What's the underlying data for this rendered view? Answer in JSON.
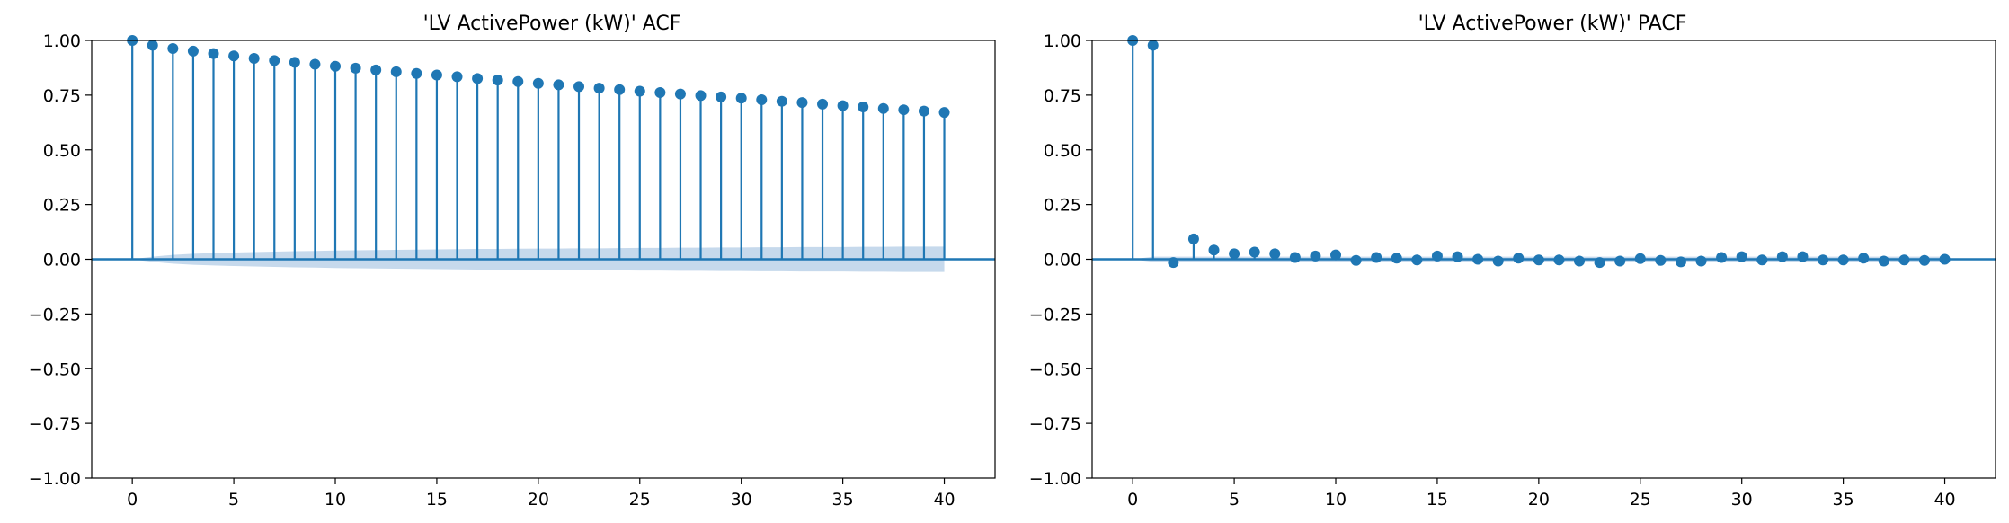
{
  "figure": {
    "accent_color": "#1f77b4",
    "band_color": "#c6d9ec",
    "zero_line_color": "#1f77b4"
  },
  "chart_data": [
    {
      "type": "stem",
      "title": "'LV ActivePower (kW)' ACF",
      "xlabel": "",
      "ylabel": "",
      "xlim": [
        -2,
        42.5
      ],
      "ylim": [
        -1.0,
        1.0
      ],
      "grid": false,
      "xticks": [
        0,
        5,
        10,
        15,
        20,
        25,
        30,
        35,
        40
      ],
      "xtick_labels": [
        "0",
        "5",
        "10",
        "15",
        "20",
        "25",
        "30",
        "35",
        "40"
      ],
      "yticks": [
        -1.0,
        -0.75,
        -0.5,
        -0.25,
        0.0,
        0.25,
        0.5,
        0.75,
        1.0
      ],
      "ytick_labels": [
        "−1.00",
        "−0.75",
        "−0.50",
        "−0.25",
        "0.00",
        "0.25",
        "0.50",
        "0.75",
        "1.00"
      ],
      "x": [
        0,
        1,
        2,
        3,
        4,
        5,
        6,
        7,
        8,
        9,
        10,
        11,
        12,
        13,
        14,
        15,
        16,
        17,
        18,
        19,
        20,
        21,
        22,
        23,
        24,
        25,
        26,
        27,
        28,
        29,
        30,
        31,
        32,
        33,
        34,
        35,
        36,
        37,
        38,
        39,
        40
      ],
      "values": [
        1.0,
        0.978,
        0.963,
        0.951,
        0.94,
        0.929,
        0.918,
        0.908,
        0.9,
        0.891,
        0.882,
        0.873,
        0.865,
        0.857,
        0.849,
        0.842,
        0.834,
        0.826,
        0.819,
        0.812,
        0.804,
        0.797,
        0.789,
        0.782,
        0.775,
        0.768,
        0.762,
        0.755,
        0.748,
        0.742,
        0.736,
        0.729,
        0.722,
        0.716,
        0.709,
        0.702,
        0.696,
        0.689,
        0.683,
        0.677,
        0.671
      ],
      "confidence_band": {
        "x": [
          0,
          1,
          2,
          3,
          4,
          5,
          6,
          7,
          8,
          9,
          10,
          11,
          12,
          13,
          14,
          15,
          16,
          17,
          18,
          19,
          20,
          21,
          22,
          23,
          24,
          25,
          26,
          27,
          28,
          29,
          30,
          31,
          32,
          33,
          34,
          35,
          36,
          37,
          38,
          39,
          40
        ],
        "upper": [
          0.0,
          0.012,
          0.02,
          0.025,
          0.028,
          0.031,
          0.033,
          0.035,
          0.037,
          0.038,
          0.04,
          0.041,
          0.042,
          0.043,
          0.044,
          0.045,
          0.046,
          0.047,
          0.047,
          0.048,
          0.049,
          0.049,
          0.05,
          0.05,
          0.051,
          0.052,
          0.052,
          0.053,
          0.053,
          0.054,
          0.054,
          0.055,
          0.055,
          0.056,
          0.056,
          0.056,
          0.057,
          0.057,
          0.058,
          0.058,
          0.058
        ],
        "lower": [
          0.0,
          -0.012,
          -0.02,
          -0.025,
          -0.028,
          -0.031,
          -0.033,
          -0.035,
          -0.037,
          -0.038,
          -0.04,
          -0.041,
          -0.042,
          -0.043,
          -0.044,
          -0.045,
          -0.046,
          -0.047,
          -0.047,
          -0.048,
          -0.049,
          -0.049,
          -0.05,
          -0.05,
          -0.051,
          -0.052,
          -0.052,
          -0.053,
          -0.053,
          -0.054,
          -0.054,
          -0.055,
          -0.055,
          -0.056,
          -0.056,
          -0.056,
          -0.057,
          -0.057,
          -0.058,
          -0.058,
          -0.058
        ]
      }
    },
    {
      "type": "stem",
      "title": "'LV ActivePower (kW)' PACF",
      "xlabel": "",
      "ylabel": "",
      "xlim": [
        -2,
        42.5
      ],
      "ylim": [
        -1.0,
        1.0
      ],
      "grid": false,
      "xticks": [
        0,
        5,
        10,
        15,
        20,
        25,
        30,
        35,
        40
      ],
      "xtick_labels": [
        "0",
        "5",
        "10",
        "15",
        "20",
        "25",
        "30",
        "35",
        "40"
      ],
      "yticks": [
        -1.0,
        -0.75,
        -0.5,
        -0.25,
        0.0,
        0.25,
        0.5,
        0.75,
        1.0
      ],
      "ytick_labels": [
        "−1.00",
        "−0.75",
        "−0.50",
        "−0.25",
        "0.00",
        "0.25",
        "0.50",
        "0.75",
        "1.00"
      ],
      "x": [
        0,
        1,
        2,
        3,
        4,
        5,
        6,
        7,
        8,
        9,
        10,
        11,
        12,
        13,
        14,
        15,
        16,
        17,
        18,
        19,
        20,
        21,
        22,
        23,
        24,
        25,
        26,
        27,
        28,
        29,
        30,
        31,
        32,
        33,
        34,
        35,
        36,
        37,
        38,
        39,
        40
      ],
      "values": [
        1.0,
        0.978,
        -0.015,
        0.093,
        0.042,
        0.025,
        0.033,
        0.025,
        0.008,
        0.015,
        0.02,
        -0.005,
        0.008,
        0.005,
        -0.003,
        0.015,
        0.012,
        0.0,
        -0.008,
        0.005,
        -0.003,
        -0.003,
        -0.008,
        -0.015,
        -0.008,
        0.003,
        -0.005,
        -0.012,
        -0.008,
        0.008,
        0.012,
        -0.003,
        0.012,
        0.012,
        -0.003,
        -0.003,
        0.005,
        -0.008,
        -0.003,
        -0.005,
        0.0
      ],
      "confidence_band": {
        "x": [
          0,
          1,
          2,
          3,
          4,
          5,
          6,
          7,
          8,
          9,
          10,
          11,
          12,
          13,
          14,
          15,
          16,
          17,
          18,
          19,
          20,
          21,
          22,
          23,
          24,
          25,
          26,
          27,
          28,
          29,
          30,
          31,
          32,
          33,
          34,
          35,
          36,
          37,
          38,
          39,
          40
        ],
        "upper": [
          0.0,
          0.012,
          0.012,
          0.012,
          0.012,
          0.012,
          0.012,
          0.012,
          0.012,
          0.012,
          0.012,
          0.012,
          0.012,
          0.012,
          0.012,
          0.012,
          0.012,
          0.012,
          0.012,
          0.012,
          0.012,
          0.012,
          0.012,
          0.012,
          0.012,
          0.012,
          0.012,
          0.012,
          0.012,
          0.012,
          0.012,
          0.012,
          0.012,
          0.012,
          0.012,
          0.012,
          0.012,
          0.012,
          0.012,
          0.012,
          0.012
        ],
        "lower": [
          0.0,
          -0.012,
          -0.012,
          -0.012,
          -0.012,
          -0.012,
          -0.012,
          -0.012,
          -0.012,
          -0.012,
          -0.012,
          -0.012,
          -0.012,
          -0.012,
          -0.012,
          -0.012,
          -0.012,
          -0.012,
          -0.012,
          -0.012,
          -0.012,
          -0.012,
          -0.012,
          -0.012,
          -0.012,
          -0.012,
          -0.012,
          -0.012,
          -0.012,
          -0.012,
          -0.012,
          -0.012,
          -0.012,
          -0.012,
          -0.012,
          -0.012,
          -0.012,
          -0.012,
          -0.012,
          -0.012,
          -0.012
        ]
      }
    }
  ]
}
